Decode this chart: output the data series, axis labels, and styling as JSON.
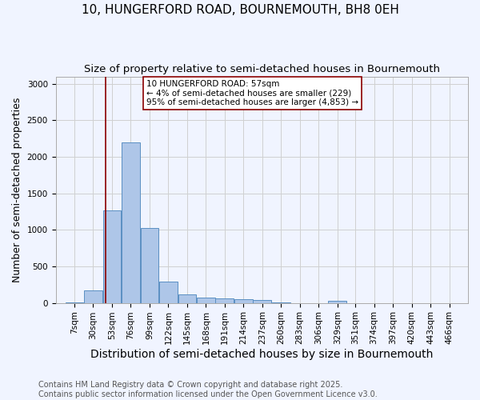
{
  "title": "10, HUNGERFORD ROAD, BOURNEMOUTH, BH8 0EH",
  "subtitle": "Size of property relative to semi-detached houses in Bournemouth",
  "xlabel": "Distribution of semi-detached houses by size in Bournemouth",
  "ylabel": "Number of semi-detached properties",
  "bin_labels": [
    "7sqm",
    "30sqm",
    "53sqm",
    "76sqm",
    "99sqm",
    "122sqm",
    "145sqm",
    "168sqm",
    "191sqm",
    "214sqm",
    "237sqm",
    "260sqm",
    "283sqm",
    "306sqm",
    "329sqm",
    "351sqm",
    "374sqm",
    "397sqm",
    "420sqm",
    "443sqm",
    "466sqm"
  ],
  "bar_values": [
    5,
    175,
    1270,
    2200,
    1020,
    290,
    120,
    75,
    65,
    50,
    35,
    5,
    0,
    0,
    30,
    0,
    0,
    0,
    0,
    0,
    0
  ],
  "bar_color": "#aec6e8",
  "bar_edgecolor": "#5a8fc2",
  "bin_edges": [
    7,
    30,
    53,
    76,
    99,
    122,
    145,
    168,
    191,
    214,
    237,
    260,
    283,
    306,
    329,
    351,
    374,
    397,
    420,
    443,
    466
  ],
  "property_size": 57,
  "vline_color": "#8b0000",
  "annotation_text": "10 HUNGERFORD ROAD: 57sqm\n← 4% of semi-detached houses are smaller (229)\n95% of semi-detached houses are larger (4,853) →",
  "ylim": [
    0,
    3100
  ],
  "yticks": [
    0,
    500,
    1000,
    1500,
    2000,
    2500,
    3000
  ],
  "grid_color": "#d0d0d0",
  "bg_color": "#f0f4ff",
  "footnote": "Contains HM Land Registry data © Crown copyright and database right 2025.\nContains public sector information licensed under the Open Government Licence v3.0.",
  "title_fontsize": 11,
  "subtitle_fontsize": 9.5,
  "xlabel_fontsize": 10,
  "ylabel_fontsize": 9,
  "tick_fontsize": 7.5,
  "footnote_fontsize": 7
}
